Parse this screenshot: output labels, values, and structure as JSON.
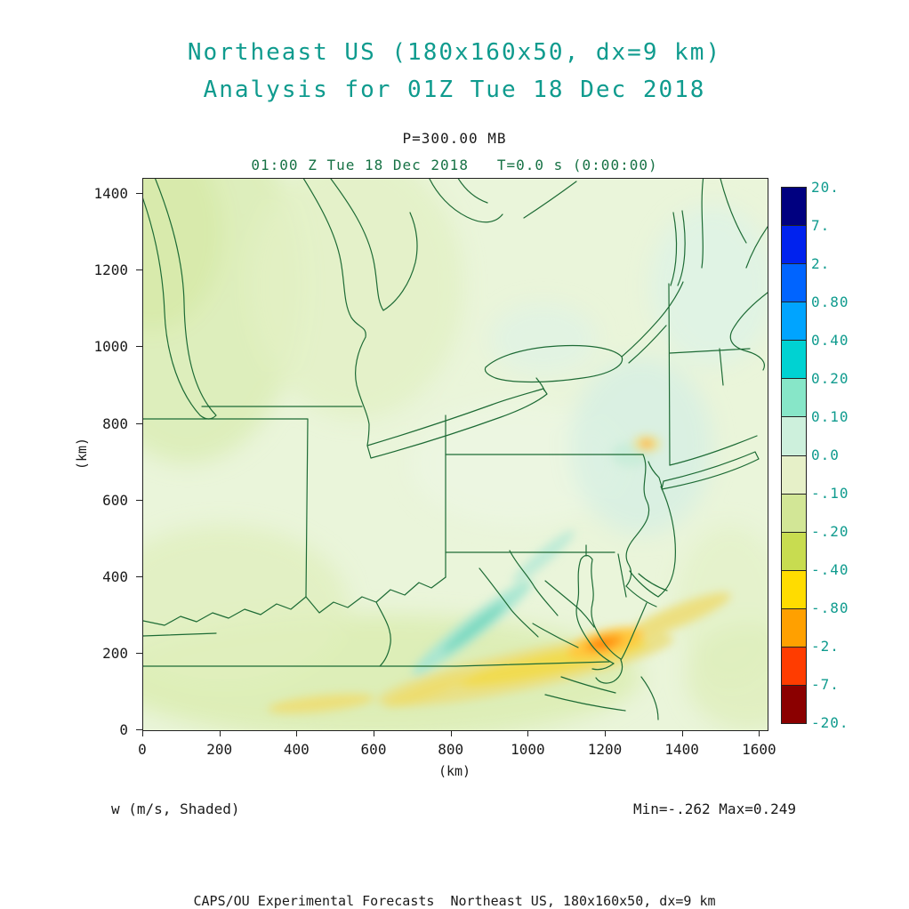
{
  "title": {
    "line1": "Northeast US (180x160x50, dx=9 km)",
    "line2": "Analysis for 01Z Tue 18 Dec 2018"
  },
  "subtitle": {
    "pressure": "P=300.00 MB",
    "valid_time": "01:00 Z Tue 18 Dec 2018   T=0.0 s (0:00:00)"
  },
  "footer": {
    "field_label": "w (m/s, Shaded)",
    "minmax": "Min=-.262 Max=0.249",
    "credit": "CAPS/OU Experimental Forecasts  Northeast US, 180x160x50, dx=9 km"
  },
  "colors": {
    "accent_teal": "#0f9b8e",
    "valid_time_green": "#177245",
    "map_outline_green": "#1d6b35",
    "axis_text": "#1a1a1a",
    "map_background": "#eaf5da"
  },
  "chart_data": {
    "type": "heatmap",
    "title": "Northeast US (180x160x50, dx=9 km) — Analysis for 01Z Tue 18 Dec 2018",
    "field": "w",
    "units": "m/s",
    "shading": "Shaded",
    "pressure_level": "P=300.00 MB",
    "valid_time": "01:00 Z Tue 18 Dec 2018",
    "forecast_time": "T=0.0 s (0:00:00)",
    "xlabel": "(km)",
    "ylabel": "(km)",
    "x_range": [
      0,
      1620
    ],
    "y_range": [
      0,
      1440
    ],
    "x_ticks": [
      0,
      200,
      400,
      600,
      800,
      1000,
      1200,
      1400,
      1600
    ],
    "y_ticks": [
      0,
      200,
      400,
      600,
      800,
      1000,
      1200,
      1400
    ],
    "grid": false,
    "legend_position": "right-colorbar",
    "data_min": -0.262,
    "data_max": 0.249,
    "colorbar": {
      "labels": [
        "20.",
        "7.",
        "2.",
        "0.80",
        "0.40",
        "0.20",
        "0.10",
        "0.0",
        "-.10",
        "-.20",
        "-.40",
        "-.80",
        "-2.",
        "-7.",
        "-20."
      ],
      "levels": [
        20,
        7,
        2,
        0.8,
        0.4,
        0.2,
        0.1,
        0.0,
        -0.1,
        -0.2,
        -0.4,
        -0.8,
        -2,
        -7,
        -20
      ],
      "colors": [
        "#000080",
        "#0022ee",
        "#0064ff",
        "#00a4ff",
        "#00d2d2",
        "#87e6c8",
        "#cdf0dc",
        "#e6f0c8",
        "#d2e696",
        "#c8dc50",
        "#ffdc00",
        "#ffa000",
        "#ff3c00",
        "#8b0000"
      ]
    },
    "notable_features": [
      {
        "label": "downdraft maximum (orange)",
        "x_km": 1200,
        "y_km": 210,
        "value_mps": -0.262
      },
      {
        "label": "updraft streak (cyan)",
        "x_km": 850,
        "y_km": 260,
        "value_mps": 0.249
      }
    ]
  }
}
